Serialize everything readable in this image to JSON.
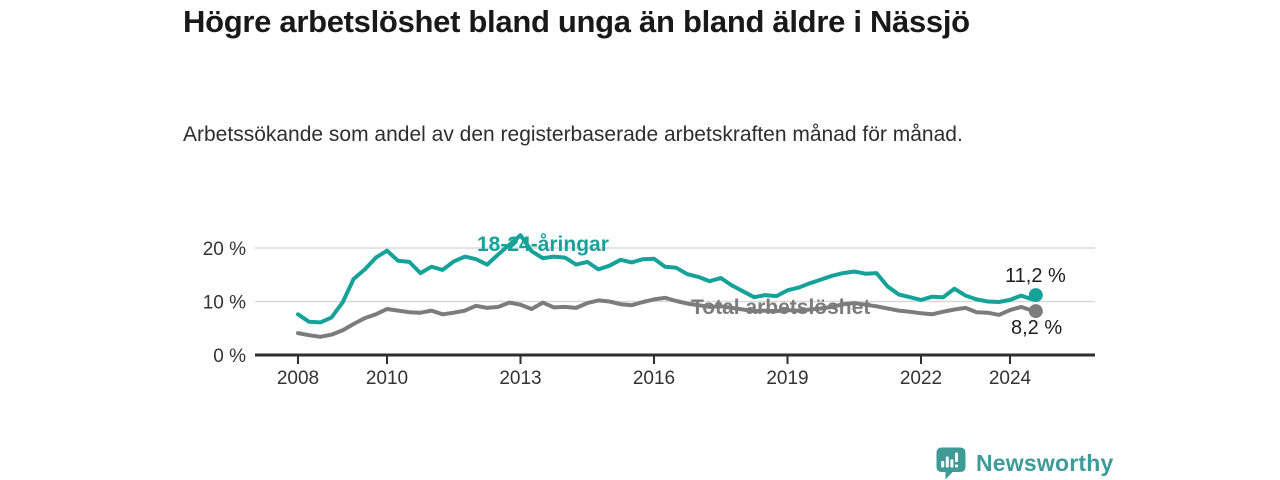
{
  "header": {
    "title": "Högre arbetslöshet bland unga än bland äldre i Nässjö",
    "subtitle": "Arbetssökande som andel av den registerbaserade arbetskraften månad för månad."
  },
  "chart_data": {
    "type": "line",
    "title": "Högre arbetslöshet bland unga än bland äldre i Nässjö",
    "subtitle": "Arbetssökande som andel av den registerbaserade arbetskraften månad för månad.",
    "xlabel": "",
    "ylabel": "",
    "grid": "horizontal-only",
    "legend_position": "inline-line-labels",
    "ylim": [
      0,
      23.5
    ],
    "xlim": [
      2007.0,
      2025.9
    ],
    "y_ticks": [
      {
        "value": 0,
        "label": "0 %"
      },
      {
        "value": 10,
        "label": "10 %"
      },
      {
        "value": 20,
        "label": "20 %"
      }
    ],
    "x_ticks": [
      {
        "value": 2008,
        "label": "2008"
      },
      {
        "value": 2010,
        "label": "2010"
      },
      {
        "value": 2013,
        "label": "2013"
      },
      {
        "value": 2016,
        "label": "2016"
      },
      {
        "value": 2019,
        "label": "2019"
      },
      {
        "value": 2022,
        "label": "2022"
      },
      {
        "value": 2024,
        "label": "2024"
      }
    ],
    "x": [
      2008,
      2008.25,
      2008.5,
      2008.75,
      2009,
      2009.25,
      2009.5,
      2009.75,
      2010,
      2010.25,
      2010.5,
      2010.75,
      2011,
      2011.25,
      2011.5,
      2011.75,
      2012,
      2012.25,
      2012.5,
      2012.75,
      2013,
      2013.25,
      2013.5,
      2013.75,
      2014,
      2014.25,
      2014.5,
      2014.75,
      2015,
      2015.25,
      2015.5,
      2015.75,
      2016,
      2016.25,
      2016.5,
      2016.75,
      2017,
      2017.25,
      2017.5,
      2017.75,
      2018,
      2018.25,
      2018.5,
      2018.75,
      2019,
      2019.25,
      2019.5,
      2019.75,
      2020,
      2020.25,
      2020.5,
      2020.75,
      2021,
      2021.25,
      2021.5,
      2021.75,
      2022,
      2022.25,
      2022.5,
      2022.75,
      2023,
      2023.25,
      2023.5,
      2023.75,
      2024,
      2024.25,
      2024.5,
      2024.58
    ],
    "series": [
      {
        "name": "18-24-åringar",
        "color": "#15a299",
        "end_value_label": "11,2 %",
        "end_value": 11.2,
        "values": [
          7.6,
          6.2,
          6.1,
          7.0,
          9.8,
          14.2,
          16.0,
          18.2,
          19.5,
          17.6,
          17.4,
          15.3,
          16.5,
          15.9,
          17.5,
          18.4,
          17.9,
          16.9,
          18.8,
          20.6,
          22.4,
          19.4,
          18.1,
          18.4,
          18.2,
          16.9,
          17.4,
          16.0,
          16.7,
          17.8,
          17.3,
          17.9,
          18.0,
          16.5,
          16.3,
          15.1,
          14.6,
          13.8,
          14.4,
          13.0,
          11.9,
          10.8,
          11.2,
          11.0,
          12.1,
          12.6,
          13.4,
          14.1,
          14.8,
          15.3,
          15.6,
          15.2,
          15.3,
          12.8,
          11.3,
          10.8,
          10.3,
          10.9,
          10.8,
          12.4,
          11.1,
          10.4,
          10.0,
          9.9,
          10.3,
          11.1,
          10.4,
          11.2
        ]
      },
      {
        "name": "Total arbetslöshet",
        "color": "#7c7c7c",
        "end_value_label": "8,2 %",
        "end_value": 8.2,
        "values": [
          4.1,
          3.7,
          3.4,
          3.8,
          4.6,
          5.8,
          6.9,
          7.6,
          8.6,
          8.3,
          8.0,
          7.9,
          8.3,
          7.6,
          7.9,
          8.3,
          9.2,
          8.8,
          9.0,
          9.8,
          9.4,
          8.6,
          9.8,
          8.9,
          9.0,
          8.8,
          9.7,
          10.2,
          10.0,
          9.5,
          9.3,
          9.9,
          10.4,
          10.7,
          10.1,
          9.6,
          9.3,
          9.0,
          9.1,
          8.8,
          8.5,
          8.2,
          8.3,
          8.2,
          8.4,
          8.3,
          8.5,
          8.7,
          9.0,
          9.5,
          9.7,
          9.4,
          9.1,
          8.7,
          8.3,
          8.1,
          7.8,
          7.6,
          8.1,
          8.5,
          8.8,
          8.0,
          7.9,
          7.5,
          8.4,
          9.0,
          8.3,
          8.2
        ]
      }
    ]
  },
  "style": {
    "grid_color": "#d8d8d8",
    "axis_color": "#2f2f2f",
    "tick_label_color": "#333333",
    "end_label_color": "#1d1d1d"
  },
  "branding": {
    "logo_text": "Newsworthy",
    "logo_color": "#3e9b96",
    "logo_icon": "bar-chart-speech-bubble-icon"
  }
}
